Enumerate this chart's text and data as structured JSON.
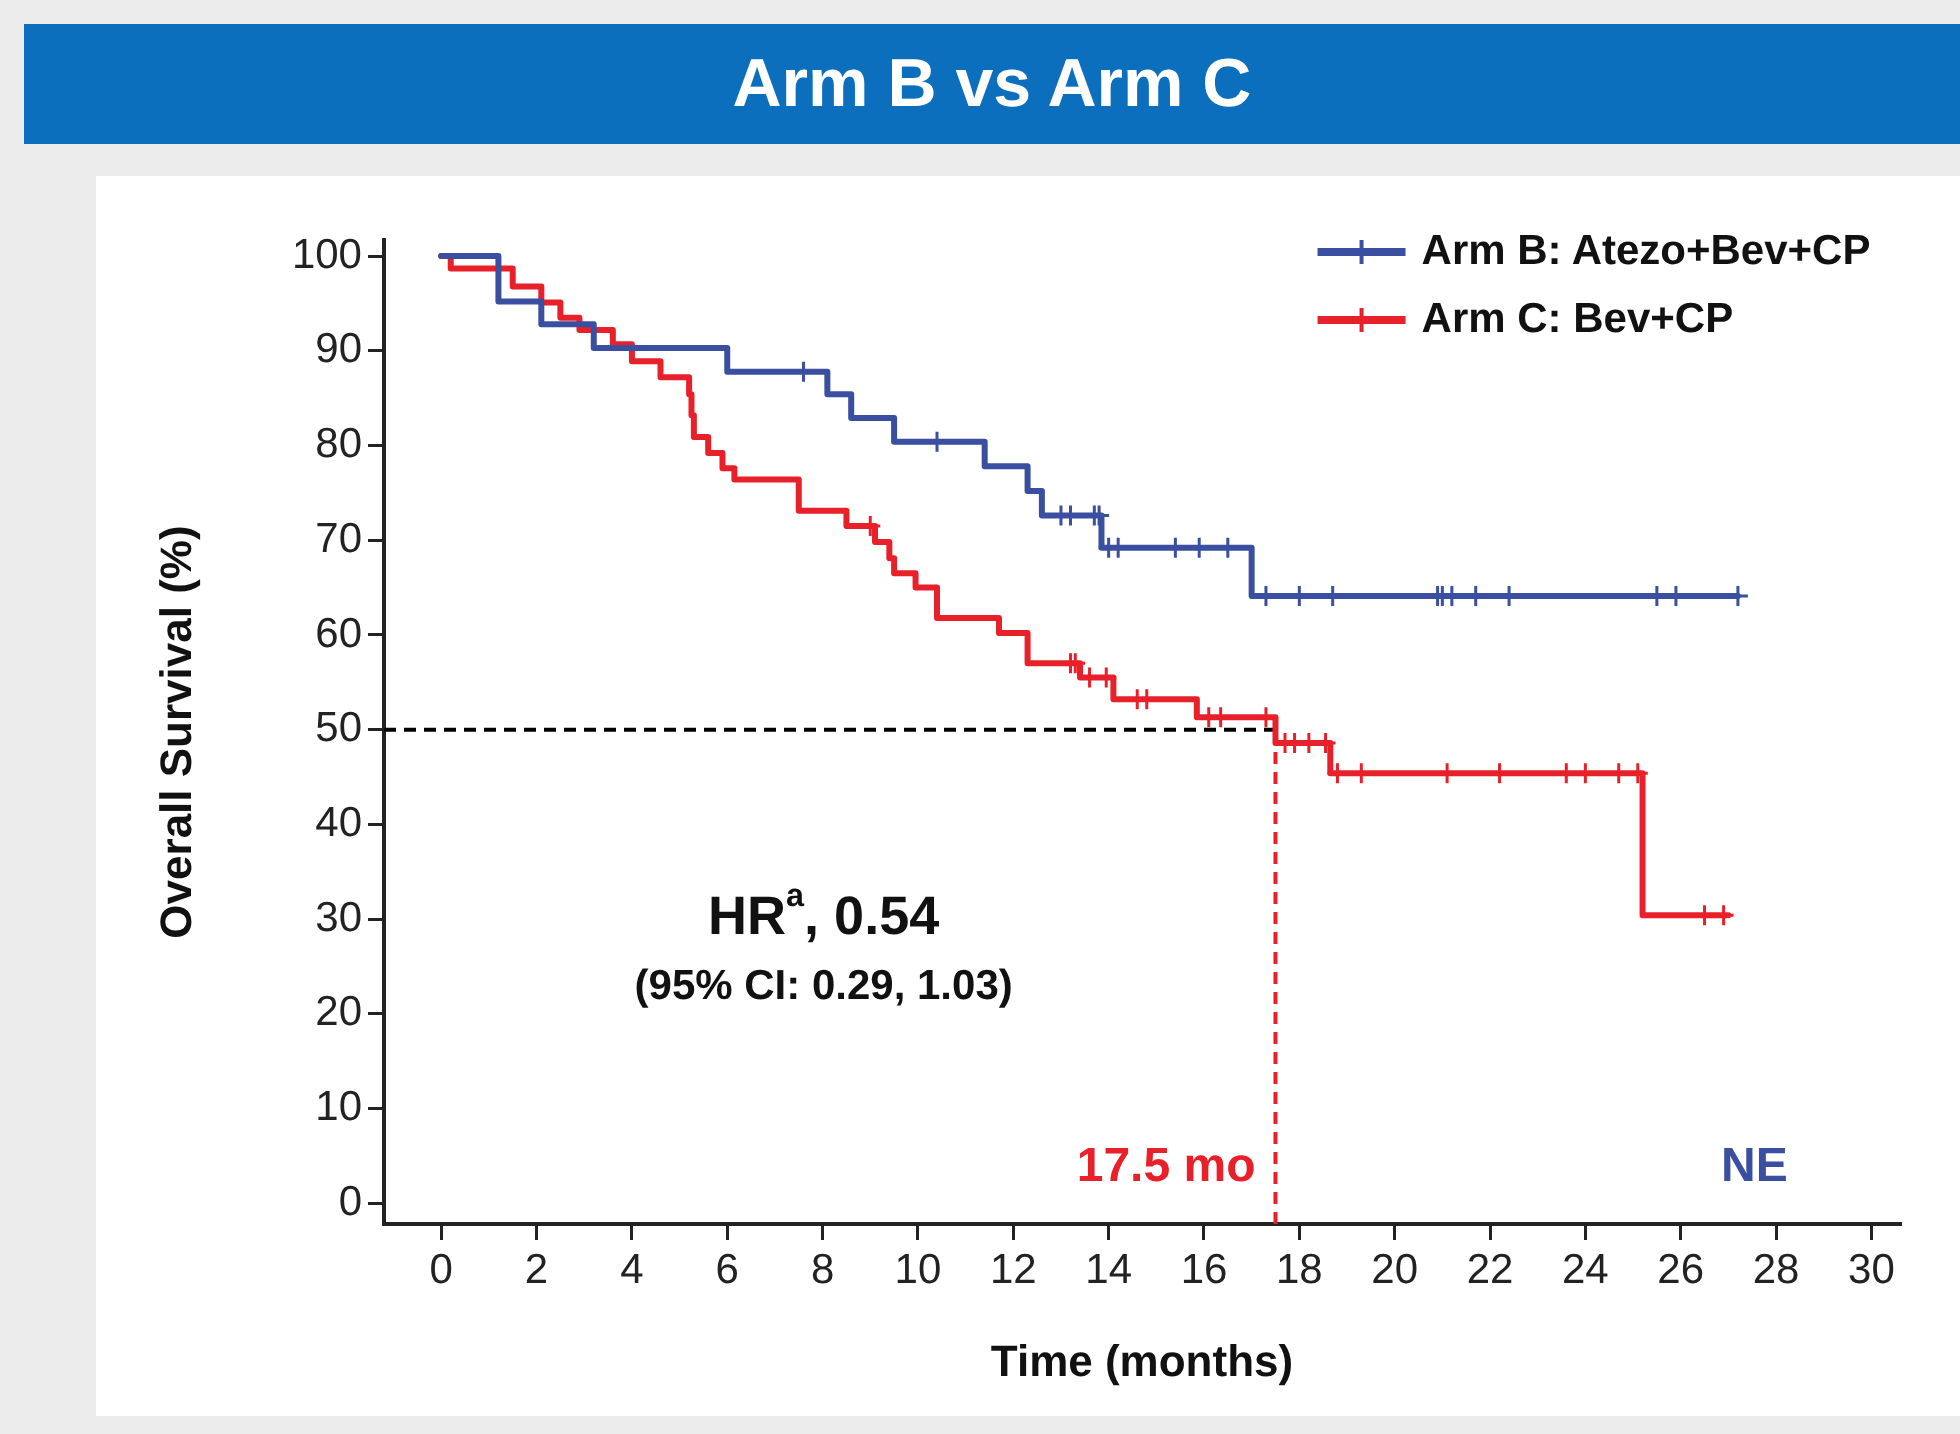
{
  "chart_data": {
    "type": "step",
    "title": "Arm B vs Arm C",
    "xlabel": "Time (months)",
    "ylabel": "Overall Survival (%)",
    "xlim": [
      -1.2,
      30.6
    ],
    "ylim": [
      -2.2,
      101.7
    ],
    "xticks": [
      0,
      2,
      4,
      6,
      8,
      10,
      12,
      14,
      16,
      18,
      20,
      22,
      24,
      26,
      28,
      30
    ],
    "yticks": [
      0,
      10,
      20,
      30,
      40,
      50,
      60,
      70,
      80,
      90,
      100
    ],
    "grid": false,
    "legend": "top right",
    "marker": "none",
    "line_style": "solid",
    "series": [
      {
        "name": "Arm B: Atezo+Bev+CP",
        "color": "#3a4fa0",
        "x": [
          0,
          1.2,
          2.1,
          3.2,
          6.0,
          8.1,
          8.6,
          9.5,
          11.4,
          12.3,
          12.6,
          13.85,
          17.0,
          27.2
        ],
        "values": [
          100,
          95.2,
          92.8,
          90.3,
          87.8,
          85.4,
          82.9,
          80.4,
          77.8,
          75.2,
          72.6,
          69.2,
          64.1,
          64.1
        ]
      },
      {
        "name": "Arm C: Bev+CP",
        "color": "#e8202a",
        "x": [
          0,
          0.2,
          1.5,
          2.1,
          2.5,
          2.9,
          3.6,
          4.0,
          4.6,
          5.2,
          5.25,
          5.3,
          5.6,
          5.9,
          6.15,
          7.5,
          8.5,
          9.1,
          9.4,
          9.5,
          9.95,
          10.4,
          11.7,
          12.3,
          13.4,
          14.1,
          15.85,
          17.5,
          18.65,
          25.2,
          27.0
        ],
        "values": [
          100,
          98.7,
          96.8,
          95.1,
          93.5,
          92.2,
          90.7,
          88.9,
          87.2,
          85.4,
          83.2,
          80.9,
          79.2,
          77.6,
          76.4,
          73.1,
          71.5,
          69.8,
          68.1,
          66.5,
          65.0,
          61.8,
          60.2,
          57.0,
          55.5,
          53.2,
          51.3,
          48.6,
          45.4,
          30.4,
          30.4
        ]
      },
      {
        "color": "#3a4fa0",
        "type": "scatter",
        "marker": "cross",
        "x": [
          7.6,
          10.4,
          13.0,
          13.2,
          13.7,
          13.8,
          14.0,
          14.2,
          15.4,
          15.9,
          16.5,
          17.3,
          18.0,
          18.7,
          20.9,
          21.0,
          21.2,
          21.7,
          22.4,
          25.5,
          25.9,
          27.2
        ],
        "values": [
          87.8,
          80.4,
          72.6,
          72.6,
          72.6,
          72.6,
          69.2,
          69.2,
          69.2,
          69.2,
          69.2,
          64.1,
          64.1,
          64.1,
          64.1,
          64.1,
          64.1,
          64.1,
          64.1,
          64.1,
          64.1,
          64.1
        ]
      },
      {
        "color": "#e8202a",
        "type": "scatter",
        "marker": "cross",
        "x": [
          9.0,
          13.2,
          13.3,
          13.6,
          13.95,
          14.6,
          14.8,
          16.1,
          16.35,
          17.3,
          17.7,
          17.9,
          18.2,
          18.55,
          18.8,
          19.3,
          21.1,
          22.2,
          23.6,
          24.0,
          24.7,
          25.1,
          26.5,
          26.9
        ],
        "values": [
          71.5,
          57.0,
          57.0,
          55.5,
          55.5,
          53.2,
          53.2,
          51.3,
          51.3,
          51.3,
          48.6,
          48.6,
          48.6,
          48.6,
          45.4,
          45.4,
          45.4,
          45.4,
          45.4,
          45.4,
          45.4,
          45.4,
          30.4,
          30.4
        ]
      }
    ],
    "ref_lines": [
      {
        "axis": "y",
        "value": 50,
        "color": "#000000",
        "line_style": "dashed"
      },
      {
        "axis": "x",
        "value": 17.5,
        "label": "17.5 mo",
        "color": "#e8202a",
        "line_style": "dashed"
      }
    ],
    "annotations": [
      "HR$^{a}$, 0.54",
      "(95% CI: 0.29, 1.03)",
      "NE"
    ]
  }
}
